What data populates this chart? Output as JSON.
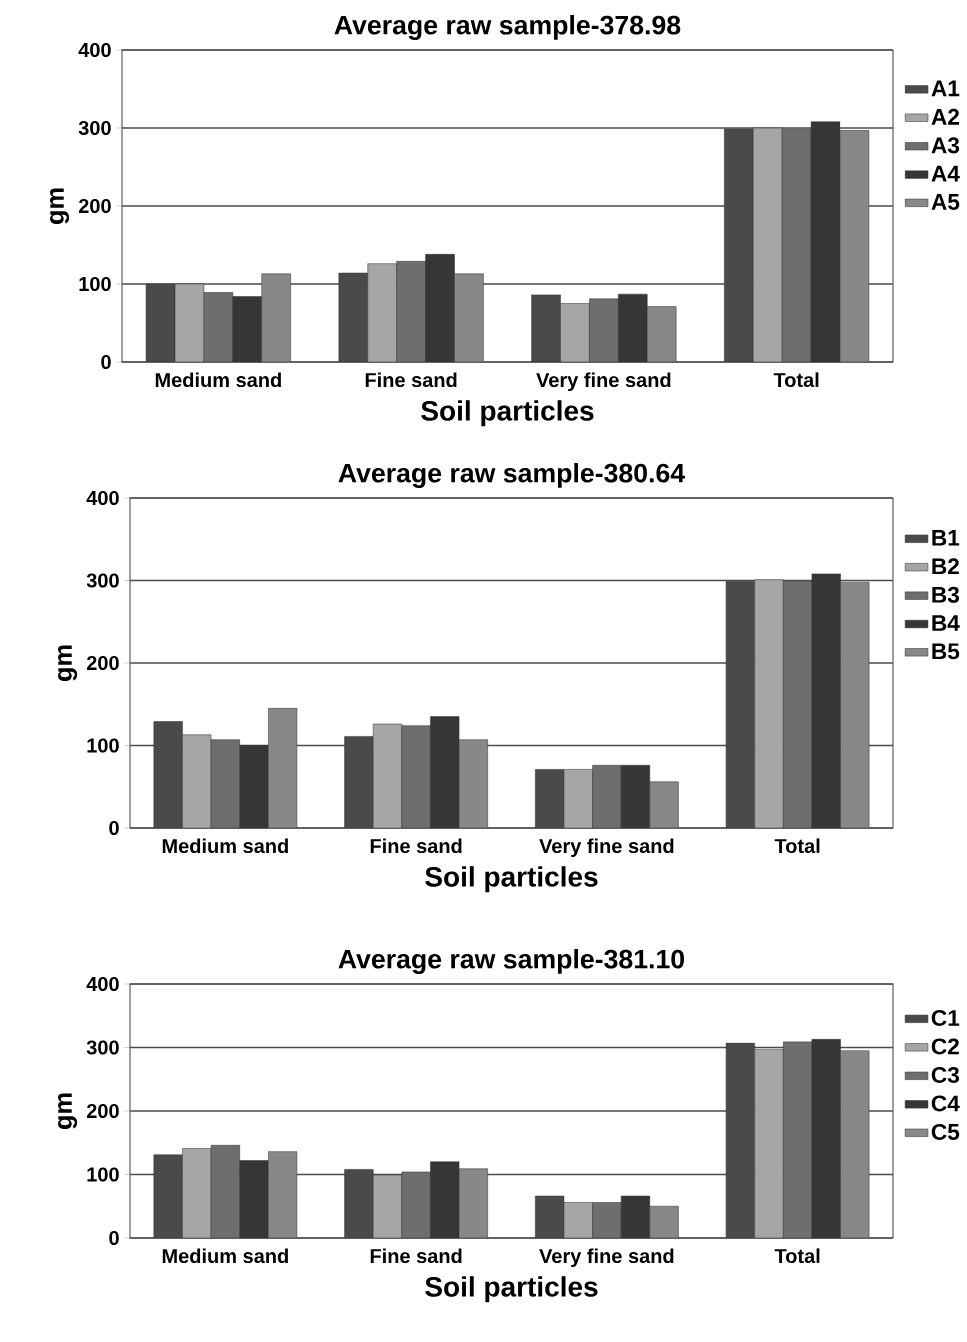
{
  "chart_data": [
    {
      "type": "bar",
      "title": "Average raw sample-378.98",
      "xlabel": "Soil particles",
      "ylabel": "gm",
      "categories": [
        "Medium sand",
        "Fine sand",
        "Very fine sand",
        "Total"
      ],
      "ylim": [
        0,
        400
      ],
      "yticks": [
        0,
        100,
        200,
        300,
        400
      ],
      "grid": "y",
      "legend": "right",
      "series": [
        {
          "name": "A1",
          "color": "#4a4a4a",
          "values": [
            100,
            114,
            86,
            299
          ]
        },
        {
          "name": "A2",
          "color": "#a6a6a6",
          "values": [
            100,
            126,
            75,
            300
          ]
        },
        {
          "name": "A3",
          "color": "#6e6e6e",
          "values": [
            89,
            129,
            81,
            299
          ]
        },
        {
          "name": "A4",
          "color": "#363636",
          "values": [
            84,
            138,
            87,
            308
          ]
        },
        {
          "name": "A5",
          "color": "#888888",
          "values": [
            113,
            113,
            71,
            297
          ]
        }
      ]
    },
    {
      "type": "bar",
      "title": "Average raw sample-380.64",
      "xlabel": "Soil particles",
      "ylabel": "gm",
      "categories": [
        "Medium sand",
        "Fine sand",
        "Very fine sand",
        "Total"
      ],
      "ylim": [
        0,
        400
      ],
      "yticks": [
        0,
        100,
        200,
        300,
        400
      ],
      "grid": "y",
      "legend": "right",
      "series": [
        {
          "name": "B1",
          "color": "#4a4a4a",
          "values": [
            129,
            111,
            71,
            299
          ]
        },
        {
          "name": "B2",
          "color": "#a6a6a6",
          "values": [
            113,
            126,
            71,
            301
          ]
        },
        {
          "name": "B3",
          "color": "#6e6e6e",
          "values": [
            107,
            124,
            76,
            299
          ]
        },
        {
          "name": "B4",
          "color": "#363636",
          "values": [
            100,
            135,
            76,
            308
          ]
        },
        {
          "name": "B5",
          "color": "#888888",
          "values": [
            145,
            107,
            56,
            298
          ]
        }
      ]
    },
    {
      "type": "bar",
      "title": "Average raw sample-381.10",
      "xlabel": "Soil particles",
      "ylabel": "gm",
      "categories": [
        "Medium sand",
        "Fine sand",
        "Very fine sand",
        "Total"
      ],
      "ylim": [
        0,
        400
      ],
      "yticks": [
        0,
        100,
        200,
        300,
        400
      ],
      "grid": "y",
      "legend": "right",
      "series": [
        {
          "name": "C1",
          "color": "#4a4a4a",
          "values": [
            131,
            108,
            66,
            307
          ]
        },
        {
          "name": "C2",
          "color": "#a6a6a6",
          "values": [
            141,
            99,
            56,
            297
          ]
        },
        {
          "name": "C3",
          "color": "#6e6e6e",
          "values": [
            146,
            104,
            56,
            309
          ]
        },
        {
          "name": "C4",
          "color": "#363636",
          "values": [
            122,
            120,
            66,
            313
          ]
        },
        {
          "name": "C5",
          "color": "#888888",
          "values": [
            136,
            109,
            50,
            295
          ]
        }
      ]
    }
  ]
}
